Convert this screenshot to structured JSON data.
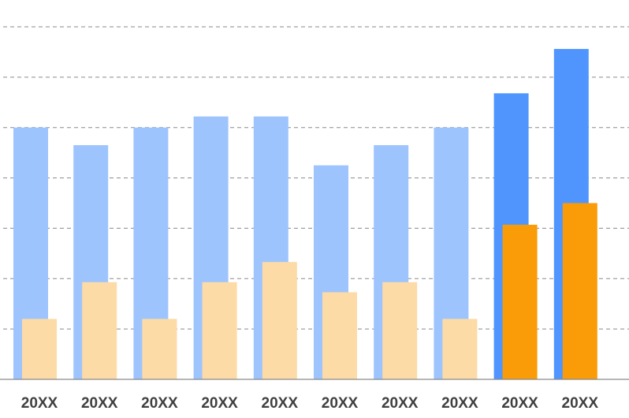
{
  "chart_data": {
    "type": "bar",
    "categories": [
      "20XX",
      "20XX",
      "20XX",
      "20XX",
      "20XX",
      "20XX",
      "20XX",
      "20XX",
      "20XX",
      "20XX"
    ],
    "series": [
      {
        "values": [
          50,
          46.5,
          50,
          52.2,
          52.2,
          42.5,
          46.5,
          50,
          56.8,
          65.6
        ]
      },
      {
        "values": [
          12,
          19.3,
          12,
          19.3,
          23.3,
          17.3,
          19.3,
          12,
          30.7,
          35.0
        ]
      }
    ],
    "ylim": [
      0,
      70
    ],
    "grid": true,
    "gridlines": 7,
    "colors": {
      "series_light": [
        "#9ec4fd",
        "#fcdba7"
      ],
      "series_highlight": [
        "#5095fd",
        "#f99c07"
      ],
      "highlight_from_index": 8
    }
  }
}
